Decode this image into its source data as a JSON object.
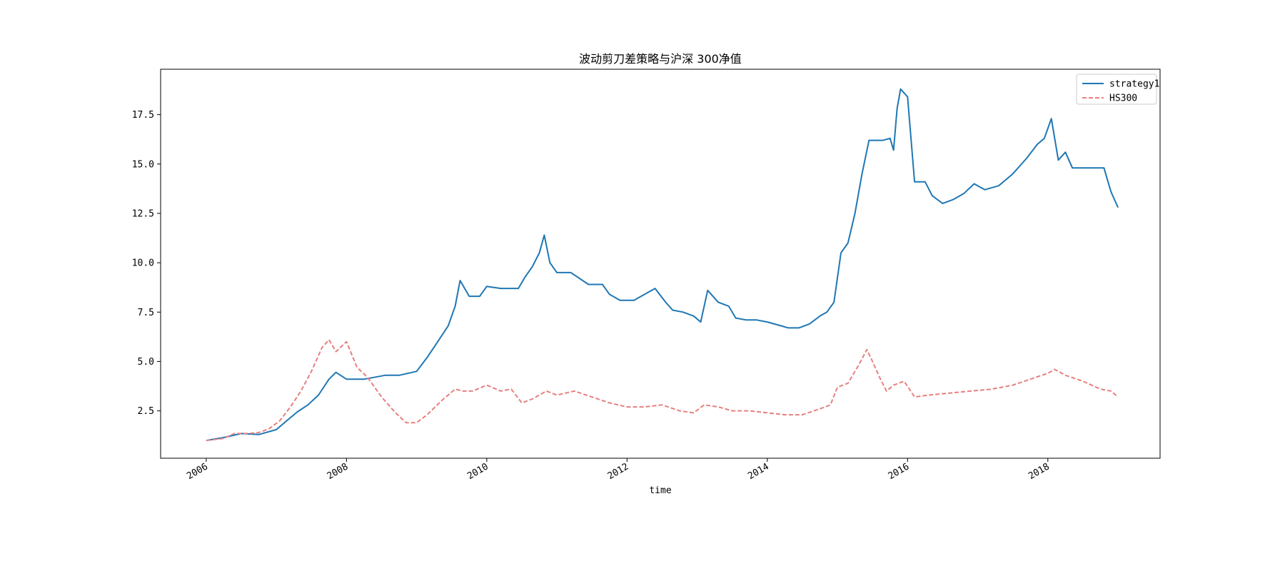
{
  "chart_data": {
    "type": "line",
    "title": "波动剪刀差策略与沪深 300净值",
    "xlabel": "time",
    "ylabel": "",
    "xlim": [
      2005.35,
      2019.6
    ],
    "ylim": [
      0.1,
      19.8
    ],
    "x_ticks": [
      2006,
      2008,
      2010,
      2012,
      2014,
      2016,
      2018
    ],
    "x_tick_labels": [
      "2006",
      "2008",
      "2010",
      "2012",
      "2014",
      "2016",
      "2018"
    ],
    "y_ticks": [
      2.5,
      5.0,
      7.5,
      10.0,
      12.5,
      15.0,
      17.5
    ],
    "y_tick_labels": [
      "2.5",
      "5.0",
      "7.5",
      "10.0",
      "12.5",
      "15.0",
      "17.5"
    ],
    "grid": false,
    "legend_position": "top-right",
    "series": [
      {
        "name": "strategy1",
        "color": "#1f77b4",
        "style": "solid",
        "x": [
          2006.0,
          2006.25,
          2006.5,
          2006.75,
          2007.0,
          2007.15,
          2007.3,
          2007.45,
          2007.6,
          2007.75,
          2007.85,
          2008.0,
          2008.25,
          2008.55,
          2008.75,
          2009.0,
          2009.15,
          2009.3,
          2009.45,
          2009.55,
          2009.62,
          2009.75,
          2009.9,
          2010.0,
          2010.2,
          2010.45,
          2010.55,
          2010.65,
          2010.75,
          2010.82,
          2010.9,
          2011.0,
          2011.2,
          2011.45,
          2011.65,
          2011.75,
          2011.9,
          2012.1,
          2012.25,
          2012.4,
          2012.55,
          2012.65,
          2012.8,
          2012.95,
          2013.05,
          2013.15,
          2013.3,
          2013.45,
          2013.55,
          2013.7,
          2013.85,
          2014.0,
          2014.2,
          2014.3,
          2014.45,
          2014.6,
          2014.75,
          2014.85,
          2014.95,
          2015.05,
          2015.15,
          2015.25,
          2015.35,
          2015.45,
          2015.55,
          2015.65,
          2015.75,
          2015.8,
          2015.85,
          2015.9,
          2016.0,
          2016.1,
          2016.25,
          2016.35,
          2016.5,
          2016.65,
          2016.8,
          2016.95,
          2017.1,
          2017.3,
          2017.5,
          2017.7,
          2017.85,
          2017.95,
          2018.05,
          2018.15,
          2018.25,
          2018.35,
          2018.5,
          2018.65,
          2018.8,
          2018.9,
          2018.95,
          2019.0
        ],
        "y": [
          1.0,
          1.15,
          1.35,
          1.3,
          1.55,
          2.0,
          2.45,
          2.8,
          3.3,
          4.1,
          4.45,
          4.1,
          4.1,
          4.3,
          4.3,
          4.5,
          5.2,
          6.0,
          6.8,
          7.8,
          9.1,
          8.3,
          8.3,
          8.8,
          8.7,
          8.7,
          9.3,
          9.8,
          10.5,
          11.4,
          10.0,
          9.5,
          9.5,
          8.9,
          8.9,
          8.4,
          8.1,
          8.1,
          8.4,
          8.7,
          8.0,
          7.6,
          7.5,
          7.3,
          7.0,
          8.6,
          8.0,
          7.8,
          7.2,
          7.1,
          7.1,
          7.0,
          6.8,
          6.7,
          6.7,
          6.9,
          7.3,
          7.5,
          8.0,
          10.5,
          11.0,
          12.5,
          14.5,
          16.2,
          16.2,
          16.2,
          16.3,
          15.7,
          17.8,
          18.8,
          18.4,
          14.1,
          14.1,
          13.4,
          13.0,
          13.2,
          13.5,
          14.0,
          13.7,
          13.9,
          14.5,
          15.3,
          16.0,
          16.3,
          17.3,
          15.2,
          15.6,
          14.8,
          14.8,
          14.8,
          14.8,
          13.6,
          13.2,
          12.8
        ]
      },
      {
        "name": "HS300",
        "color": "#e78080",
        "style": "dashed",
        "x": [
          2006.0,
          2006.25,
          2006.4,
          2006.6,
          2006.75,
          2006.9,
          2007.05,
          2007.2,
          2007.35,
          2007.5,
          2007.65,
          2007.75,
          2007.85,
          2008.0,
          2008.15,
          2008.3,
          2008.5,
          2008.7,
          2008.85,
          2009.0,
          2009.15,
          2009.35,
          2009.55,
          2009.65,
          2009.8,
          2010.0,
          2010.2,
          2010.35,
          2010.5,
          2010.65,
          2010.85,
          2011.0,
          2011.25,
          2011.5,
          2011.75,
          2012.0,
          2012.25,
          2012.5,
          2012.75,
          2012.95,
          2013.1,
          2013.3,
          2013.5,
          2013.75,
          2014.0,
          2014.25,
          2014.5,
          2014.75,
          2014.9,
          2015.0,
          2015.15,
          2015.3,
          2015.42,
          2015.5,
          2015.6,
          2015.7,
          2015.8,
          2015.95,
          2016.1,
          2016.3,
          2016.6,
          2016.9,
          2017.2,
          2017.5,
          2017.75,
          2018.0,
          2018.1,
          2018.25,
          2018.5,
          2018.75,
          2018.9,
          2019.0
        ],
        "y": [
          1.0,
          1.1,
          1.35,
          1.35,
          1.4,
          1.6,
          2.0,
          2.7,
          3.5,
          4.5,
          5.7,
          6.1,
          5.5,
          6.0,
          4.7,
          4.2,
          3.2,
          2.4,
          1.9,
          1.9,
          2.3,
          3.0,
          3.6,
          3.5,
          3.5,
          3.8,
          3.5,
          3.6,
          2.9,
          3.1,
          3.5,
          3.3,
          3.5,
          3.2,
          2.9,
          2.7,
          2.7,
          2.8,
          2.5,
          2.4,
          2.8,
          2.7,
          2.5,
          2.5,
          2.4,
          2.3,
          2.3,
          2.6,
          2.8,
          3.7,
          3.9,
          4.8,
          5.6,
          5.0,
          4.2,
          3.5,
          3.8,
          4.0,
          3.2,
          3.3,
          3.4,
          3.5,
          3.6,
          3.8,
          4.1,
          4.4,
          4.6,
          4.3,
          4.0,
          3.6,
          3.5,
          3.2
        ]
      }
    ]
  }
}
